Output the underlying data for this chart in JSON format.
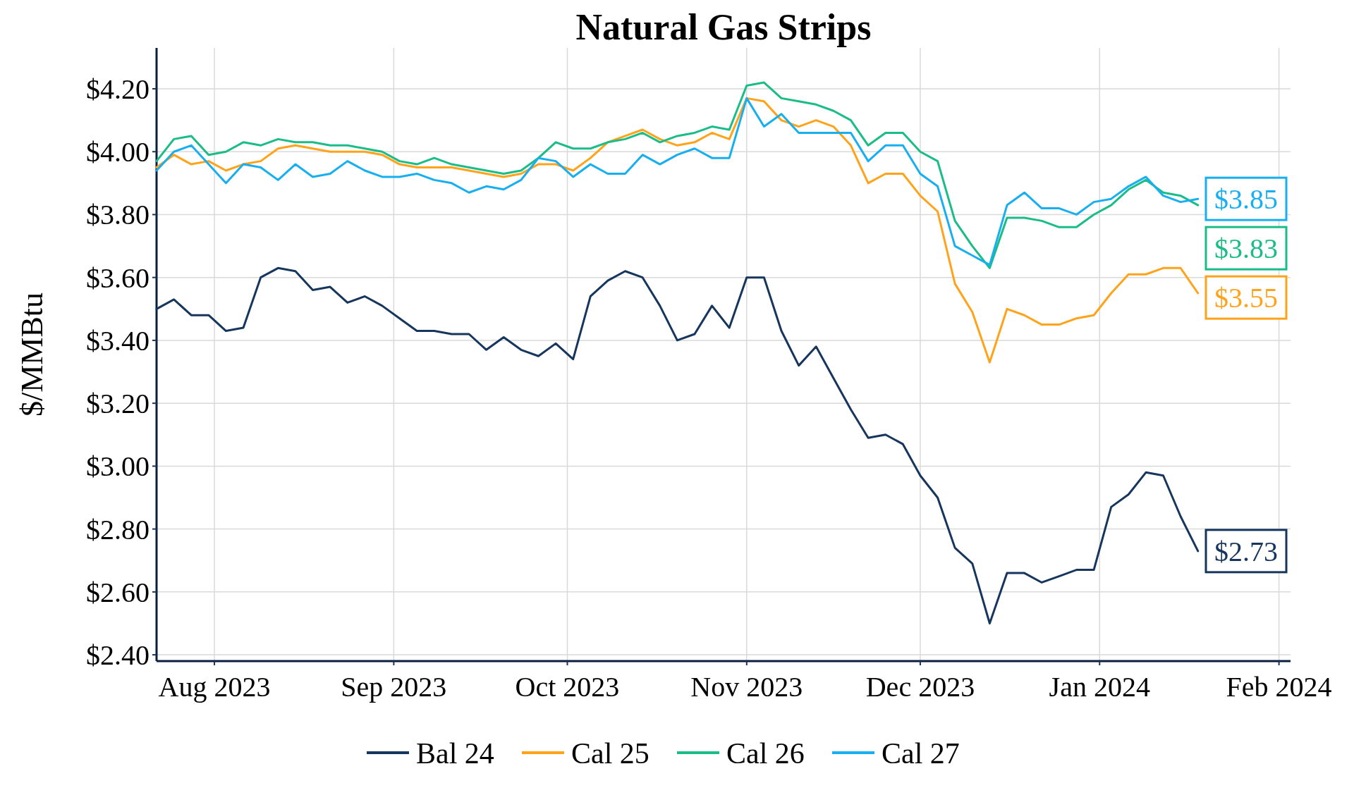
{
  "chart_data": {
    "type": "line",
    "title": "Natural Gas Strips",
    "ylabel": "$/MMBtu",
    "x": [
      "2023-07-22",
      "2023-07-25",
      "2023-07-28",
      "2023-07-31",
      "2023-08-03",
      "2023-08-06",
      "2023-08-09",
      "2023-08-12",
      "2023-08-15",
      "2023-08-18",
      "2023-08-21",
      "2023-08-24",
      "2023-08-27",
      "2023-08-30",
      "2023-09-02",
      "2023-09-05",
      "2023-09-08",
      "2023-09-11",
      "2023-09-14",
      "2023-09-17",
      "2023-09-20",
      "2023-09-23",
      "2023-09-26",
      "2023-09-29",
      "2023-10-02",
      "2023-10-05",
      "2023-10-08",
      "2023-10-11",
      "2023-10-14",
      "2023-10-17",
      "2023-10-20",
      "2023-10-23",
      "2023-10-26",
      "2023-10-29",
      "2023-11-01",
      "2023-11-04",
      "2023-11-07",
      "2023-11-10",
      "2023-11-13",
      "2023-11-16",
      "2023-11-19",
      "2023-11-22",
      "2023-11-25",
      "2023-11-28",
      "2023-12-01",
      "2023-12-04",
      "2023-12-07",
      "2023-12-10",
      "2023-12-13",
      "2023-12-16",
      "2023-12-19",
      "2023-12-22",
      "2023-12-25",
      "2023-12-28",
      "2023-12-31",
      "2024-01-03",
      "2024-01-06",
      "2024-01-09",
      "2024-01-12",
      "2024-01-15",
      "2024-01-18"
    ],
    "series": [
      {
        "name": "Bal 24",
        "color": "#17365d",
        "values": [
          3.5,
          3.53,
          3.48,
          3.48,
          3.43,
          3.44,
          3.6,
          3.63,
          3.62,
          3.56,
          3.57,
          3.52,
          3.54,
          3.51,
          3.47,
          3.43,
          3.43,
          3.42,
          3.42,
          3.37,
          3.41,
          3.37,
          3.35,
          3.39,
          3.34,
          3.54,
          3.59,
          3.62,
          3.6,
          3.51,
          3.4,
          3.42,
          3.51,
          3.44,
          3.6,
          3.6,
          3.43,
          3.32,
          3.38,
          3.28,
          3.18,
          3.09,
          3.1,
          3.07,
          2.97,
          2.9,
          2.74,
          2.69,
          2.5,
          2.66,
          2.66,
          2.63,
          2.65,
          2.67,
          2.67,
          2.87,
          2.91,
          2.98,
          2.97,
          2.84,
          2.73
        ],
        "value_labels": [
          null,
          null,
          null,
          null,
          null,
          null,
          null,
          null,
          null,
          null,
          null,
          null,
          null,
          null,
          null,
          null,
          null,
          null,
          null,
          null,
          null,
          null,
          null,
          null,
          null,
          null,
          null,
          null,
          null,
          null,
          null,
          null,
          null,
          null,
          null,
          null,
          null,
          null,
          null,
          null,
          null,
          null,
          null,
          null,
          null,
          null,
          null,
          null,
          null,
          null,
          null,
          null,
          null,
          null,
          null,
          null,
          null,
          null,
          null,
          null,
          "$2.73"
        ]
      },
      {
        "name": "Cal 25",
        "color": "#ffa31a",
        "values": [
          3.95,
          3.99,
          3.96,
          3.97,
          3.94,
          3.96,
          3.97,
          4.01,
          4.02,
          4.01,
          4.0,
          4.0,
          4.0,
          3.99,
          3.96,
          3.95,
          3.95,
          3.95,
          3.94,
          3.93,
          3.92,
          3.93,
          3.96,
          3.96,
          3.94,
          3.98,
          4.03,
          4.05,
          4.07,
          4.04,
          4.02,
          4.03,
          4.06,
          4.04,
          4.17,
          4.16,
          4.1,
          4.08,
          4.1,
          4.08,
          4.02,
          3.9,
          3.93,
          3.93,
          3.86,
          3.81,
          3.58,
          3.49,
          3.33,
          3.5,
          3.48,
          3.45,
          3.45,
          3.47,
          3.48,
          3.55,
          3.61,
          3.61,
          3.63,
          3.63,
          3.55
        ],
        "value_labels": [
          null,
          null,
          null,
          null,
          null,
          null,
          null,
          null,
          null,
          null,
          null,
          null,
          null,
          null,
          null,
          null,
          null,
          null,
          null,
          null,
          null,
          null,
          null,
          null,
          null,
          null,
          null,
          null,
          null,
          null,
          null,
          null,
          null,
          null,
          null,
          null,
          null,
          null,
          null,
          null,
          null,
          null,
          null,
          null,
          null,
          null,
          null,
          null,
          null,
          null,
          null,
          null,
          null,
          null,
          null,
          null,
          null,
          null,
          null,
          null,
          "$3.55"
        ]
      },
      {
        "name": "Cal 26",
        "color": "#1abc88",
        "values": [
          3.97,
          4.04,
          4.05,
          3.99,
          4.0,
          4.03,
          4.02,
          4.04,
          4.03,
          4.03,
          4.02,
          4.02,
          4.01,
          4.0,
          3.97,
          3.96,
          3.98,
          3.96,
          3.95,
          3.94,
          3.93,
          3.94,
          3.98,
          4.03,
          4.01,
          4.01,
          4.03,
          4.04,
          4.06,
          4.03,
          4.05,
          4.06,
          4.08,
          4.07,
          4.21,
          4.22,
          4.17,
          4.16,
          4.15,
          4.13,
          4.1,
          4.02,
          4.06,
          4.06,
          4.0,
          3.97,
          3.78,
          3.7,
          3.63,
          3.79,
          3.79,
          3.78,
          3.76,
          3.76,
          3.8,
          3.83,
          3.88,
          3.91,
          3.87,
          3.86,
          3.83
        ],
        "value_labels": [
          null,
          null,
          null,
          null,
          null,
          null,
          null,
          null,
          null,
          null,
          null,
          null,
          null,
          null,
          null,
          null,
          null,
          null,
          null,
          null,
          null,
          null,
          null,
          null,
          null,
          null,
          null,
          null,
          null,
          null,
          null,
          null,
          null,
          null,
          null,
          null,
          null,
          null,
          null,
          null,
          null,
          null,
          null,
          null,
          null,
          null,
          null,
          null,
          null,
          null,
          null,
          null,
          null,
          null,
          null,
          null,
          null,
          null,
          null,
          null,
          "$3.83"
        ]
      },
      {
        "name": "Cal 27",
        "color": "#17aff0",
        "values": [
          3.94,
          4.0,
          4.02,
          3.96,
          3.9,
          3.96,
          3.95,
          3.91,
          3.96,
          3.92,
          3.93,
          3.97,
          3.94,
          3.92,
          3.92,
          3.93,
          3.91,
          3.9,
          3.87,
          3.89,
          3.88,
          3.91,
          3.98,
          3.97,
          3.92,
          3.96,
          3.93,
          3.93,
          3.99,
          3.96,
          3.99,
          4.01,
          3.98,
          3.98,
          4.17,
          4.08,
          4.12,
          4.06,
          4.06,
          4.06,
          4.06,
          3.97,
          4.02,
          4.02,
          3.93,
          3.89,
          3.7,
          3.67,
          3.64,
          3.83,
          3.87,
          3.82,
          3.82,
          3.8,
          3.84,
          3.85,
          3.89,
          3.92,
          3.86,
          3.84,
          3.85
        ],
        "value_labels": [
          null,
          null,
          null,
          null,
          null,
          null,
          null,
          null,
          null,
          null,
          null,
          null,
          null,
          null,
          null,
          null,
          null,
          null,
          null,
          null,
          null,
          null,
          null,
          null,
          null,
          null,
          null,
          null,
          null,
          null,
          null,
          null,
          null,
          null,
          null,
          null,
          null,
          null,
          null,
          null,
          null,
          null,
          null,
          null,
          null,
          null,
          null,
          null,
          null,
          null,
          null,
          null,
          null,
          null,
          null,
          null,
          null,
          null,
          null,
          null,
          "$3.85"
        ]
      }
    ],
    "xlim": [
      "2023-07-22",
      "2024-02-03"
    ],
    "xticks": [
      {
        "value": "2023-08-01",
        "label": "Aug 2023"
      },
      {
        "value": "2023-09-01",
        "label": "Sep 2023"
      },
      {
        "value": "2023-10-01",
        "label": "Oct 2023"
      },
      {
        "value": "2023-11-01",
        "label": "Nov 2023"
      },
      {
        "value": "2023-12-01",
        "label": "Dec 2023"
      },
      {
        "value": "2024-01-01",
        "label": "Jan 2024"
      },
      {
        "value": "2024-02-01",
        "label": "Feb 2024"
      }
    ],
    "ylim": [
      2.38,
      4.33
    ],
    "yticks": [
      {
        "value": 2.4,
        "label": "$2.40"
      },
      {
        "value": 2.6,
        "label": "$2.60"
      },
      {
        "value": 2.8,
        "label": "$2.80"
      },
      {
        "value": 3.0,
        "label": "$3.00"
      },
      {
        "value": 3.2,
        "label": "$3.20"
      },
      {
        "value": 3.4,
        "label": "$3.40"
      },
      {
        "value": 3.6,
        "label": "$3.60"
      },
      {
        "value": 3.8,
        "label": "$3.80"
      },
      {
        "value": 4.0,
        "label": "$4.00"
      },
      {
        "value": 4.2,
        "label": "$4.20"
      }
    ],
    "grid": true,
    "legend": "bottom",
    "marker": "none",
    "line_style": "solid"
  }
}
